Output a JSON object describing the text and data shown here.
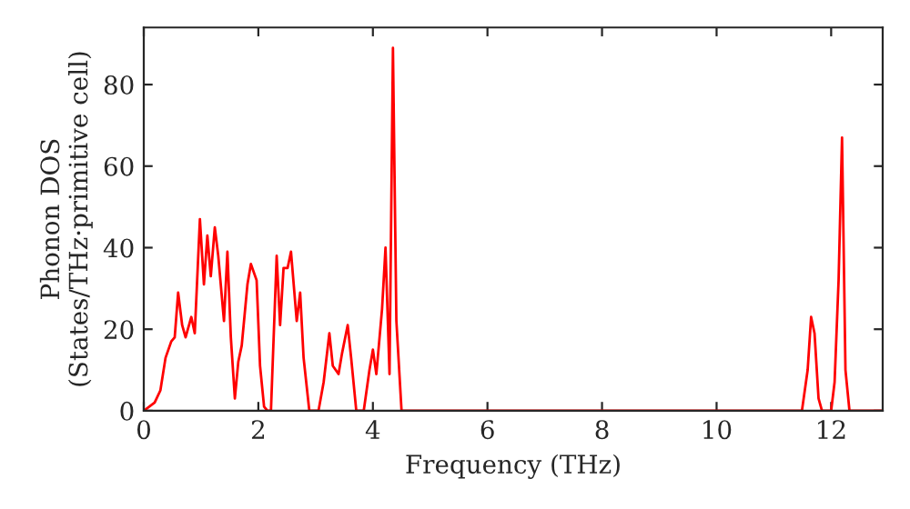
{
  "chart_data": {
    "type": "line",
    "xlabel": "Frequency (THz)",
    "ylabel": "Phonon DOS\n(States/THz·primitive cell)",
    "x": [
      0,
      0.19,
      0.29,
      0.38,
      0.48,
      0.54,
      0.6,
      0.67,
      0.73,
      0.83,
      0.89,
      0.98,
      1.05,
      1.11,
      1.17,
      1.24,
      1.3,
      1.4,
      1.46,
      1.52,
      1.59,
      1.65,
      1.71,
      1.81,
      1.87,
      1.97,
      2.03,
      2.1,
      2.16,
      2.22,
      2.32,
      2.38,
      2.44,
      2.51,
      2.57,
      2.67,
      2.73,
      2.79,
      2.89,
      2.98,
      3.05,
      3.14,
      3.24,
      3.3,
      3.4,
      3.46,
      3.56,
      3.62,
      3.71,
      3.84,
      3.94,
      4.0,
      4.06,
      4.16,
      4.22,
      4.29,
      4.35,
      4.41,
      4.5,
      11.49,
      11.59,
      11.65,
      11.71,
      11.78,
      11.84,
      11.94,
      12.0,
      12.06,
      12.13,
      12.19,
      12.25,
      12.32,
      12.9
    ],
    "series": [
      {
        "color": "#ff0000",
        "values": [
          0,
          2,
          5,
          13,
          17,
          18,
          29,
          21,
          18,
          23,
          19,
          47,
          31,
          43,
          33,
          45,
          38,
          22,
          39,
          18,
          3,
          12,
          16,
          31,
          36,
          32,
          11,
          1,
          0,
          0,
          38,
          21,
          35,
          35,
          39,
          22,
          29,
          13,
          0,
          0,
          0,
          7,
          19,
          11,
          9,
          14,
          21,
          13,
          0,
          0,
          10,
          15,
          9,
          25,
          40,
          9,
          89,
          22,
          0,
          0,
          10,
          23,
          19,
          3,
          0,
          0,
          0,
          7,
          32,
          67,
          10,
          0,
          0
        ]
      }
    ],
    "xlim": [
      0,
      12.9
    ],
    "ylim": [
      0,
      94
    ],
    "xticks": [
      0,
      2,
      4,
      6,
      8,
      10,
      12
    ],
    "yticks": [
      0,
      20,
      40,
      60,
      80
    ],
    "grid": false,
    "legend": false
  }
}
